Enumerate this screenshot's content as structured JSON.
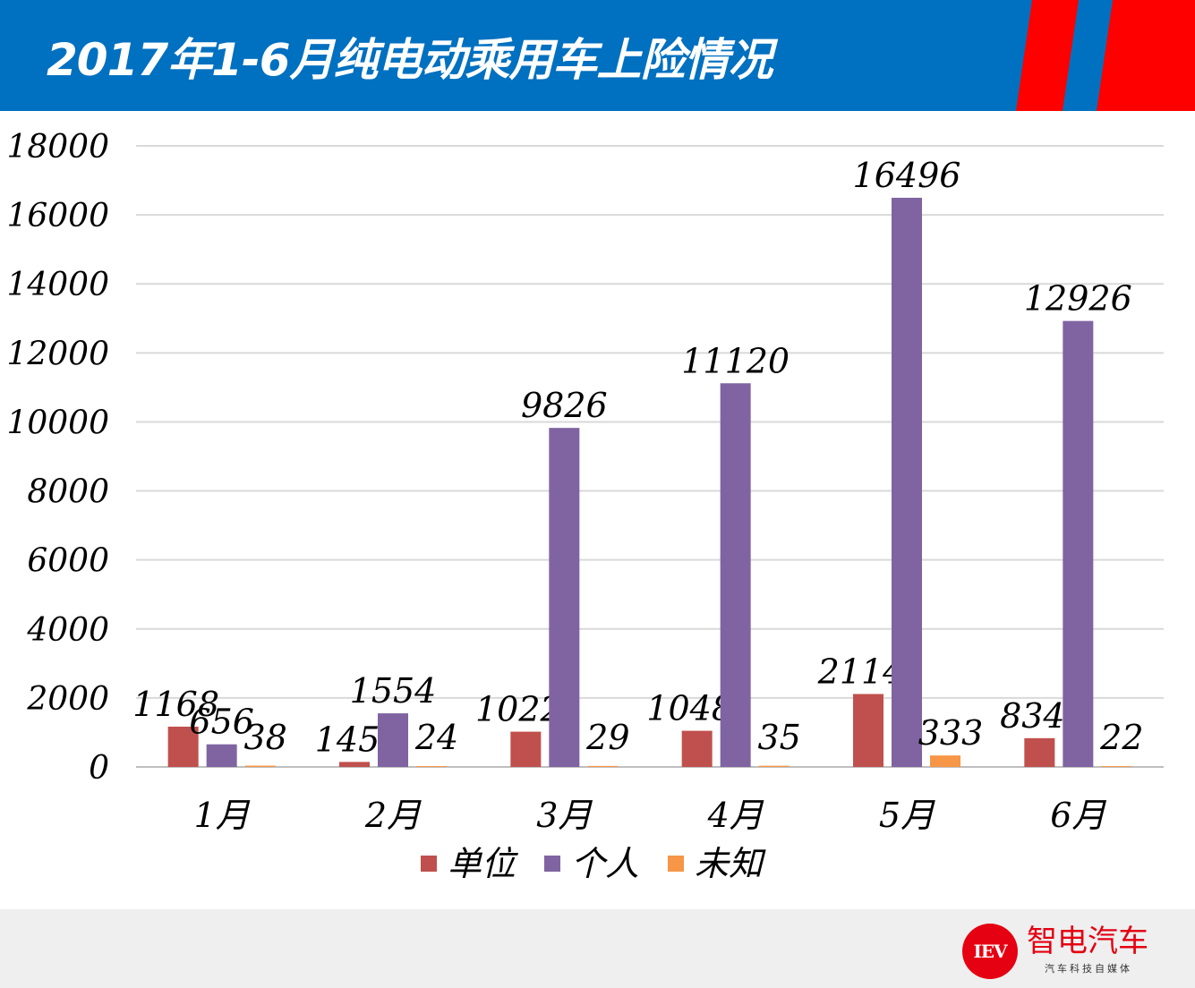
{
  "header": {
    "title": "2017年1-6月纯电动乘用车上险情况"
  },
  "brand": {
    "logo_text": "IEV",
    "name": "智电汽车",
    "tagline": "汽车科技自媒体"
  },
  "colors": {
    "header_bg": "#0070C0",
    "stripe": "#FF0000",
    "单位": "#C0504D",
    "个人": "#8064A2",
    "未知": "#F79646"
  },
  "chart_data": {
    "type": "bar",
    "title": "2017年1-6月纯电动乘用车上险情况",
    "categories": [
      "1月",
      "2月",
      "3月",
      "4月",
      "5月",
      "6月"
    ],
    "series": [
      {
        "name": "单位",
        "color": "#C0504D",
        "values": [
          1168,
          145,
          1022,
          1048,
          2114,
          834
        ]
      },
      {
        "name": "个人",
        "color": "#8064A2",
        "values": [
          656,
          1554,
          9826,
          11120,
          16496,
          12926
        ]
      },
      {
        "name": "未知",
        "color": "#F79646",
        "values": [
          38,
          24,
          29,
          35,
          333,
          22
        ]
      }
    ],
    "ylim": [
      0,
      18000
    ],
    "yticks": [
      0,
      2000,
      4000,
      6000,
      8000,
      10000,
      12000,
      14000,
      16000,
      18000
    ],
    "grid": true,
    "legend": "bottom",
    "xlabel": "",
    "ylabel": ""
  }
}
